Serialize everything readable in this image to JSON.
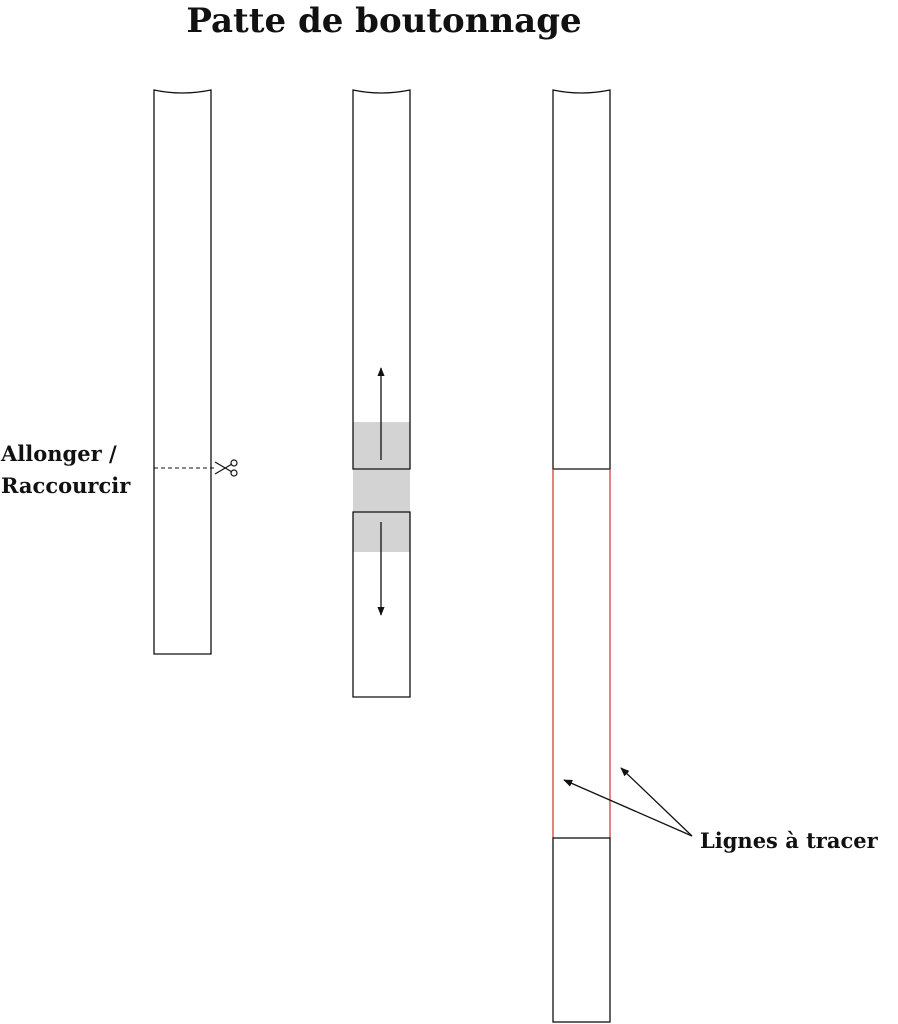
{
  "title": "Patte de boutonnage",
  "labels": {
    "adjust_line_1": "Allonger /",
    "adjust_line_2": "Raccourcir",
    "trace_lines": "Lignes à tracer"
  }
}
